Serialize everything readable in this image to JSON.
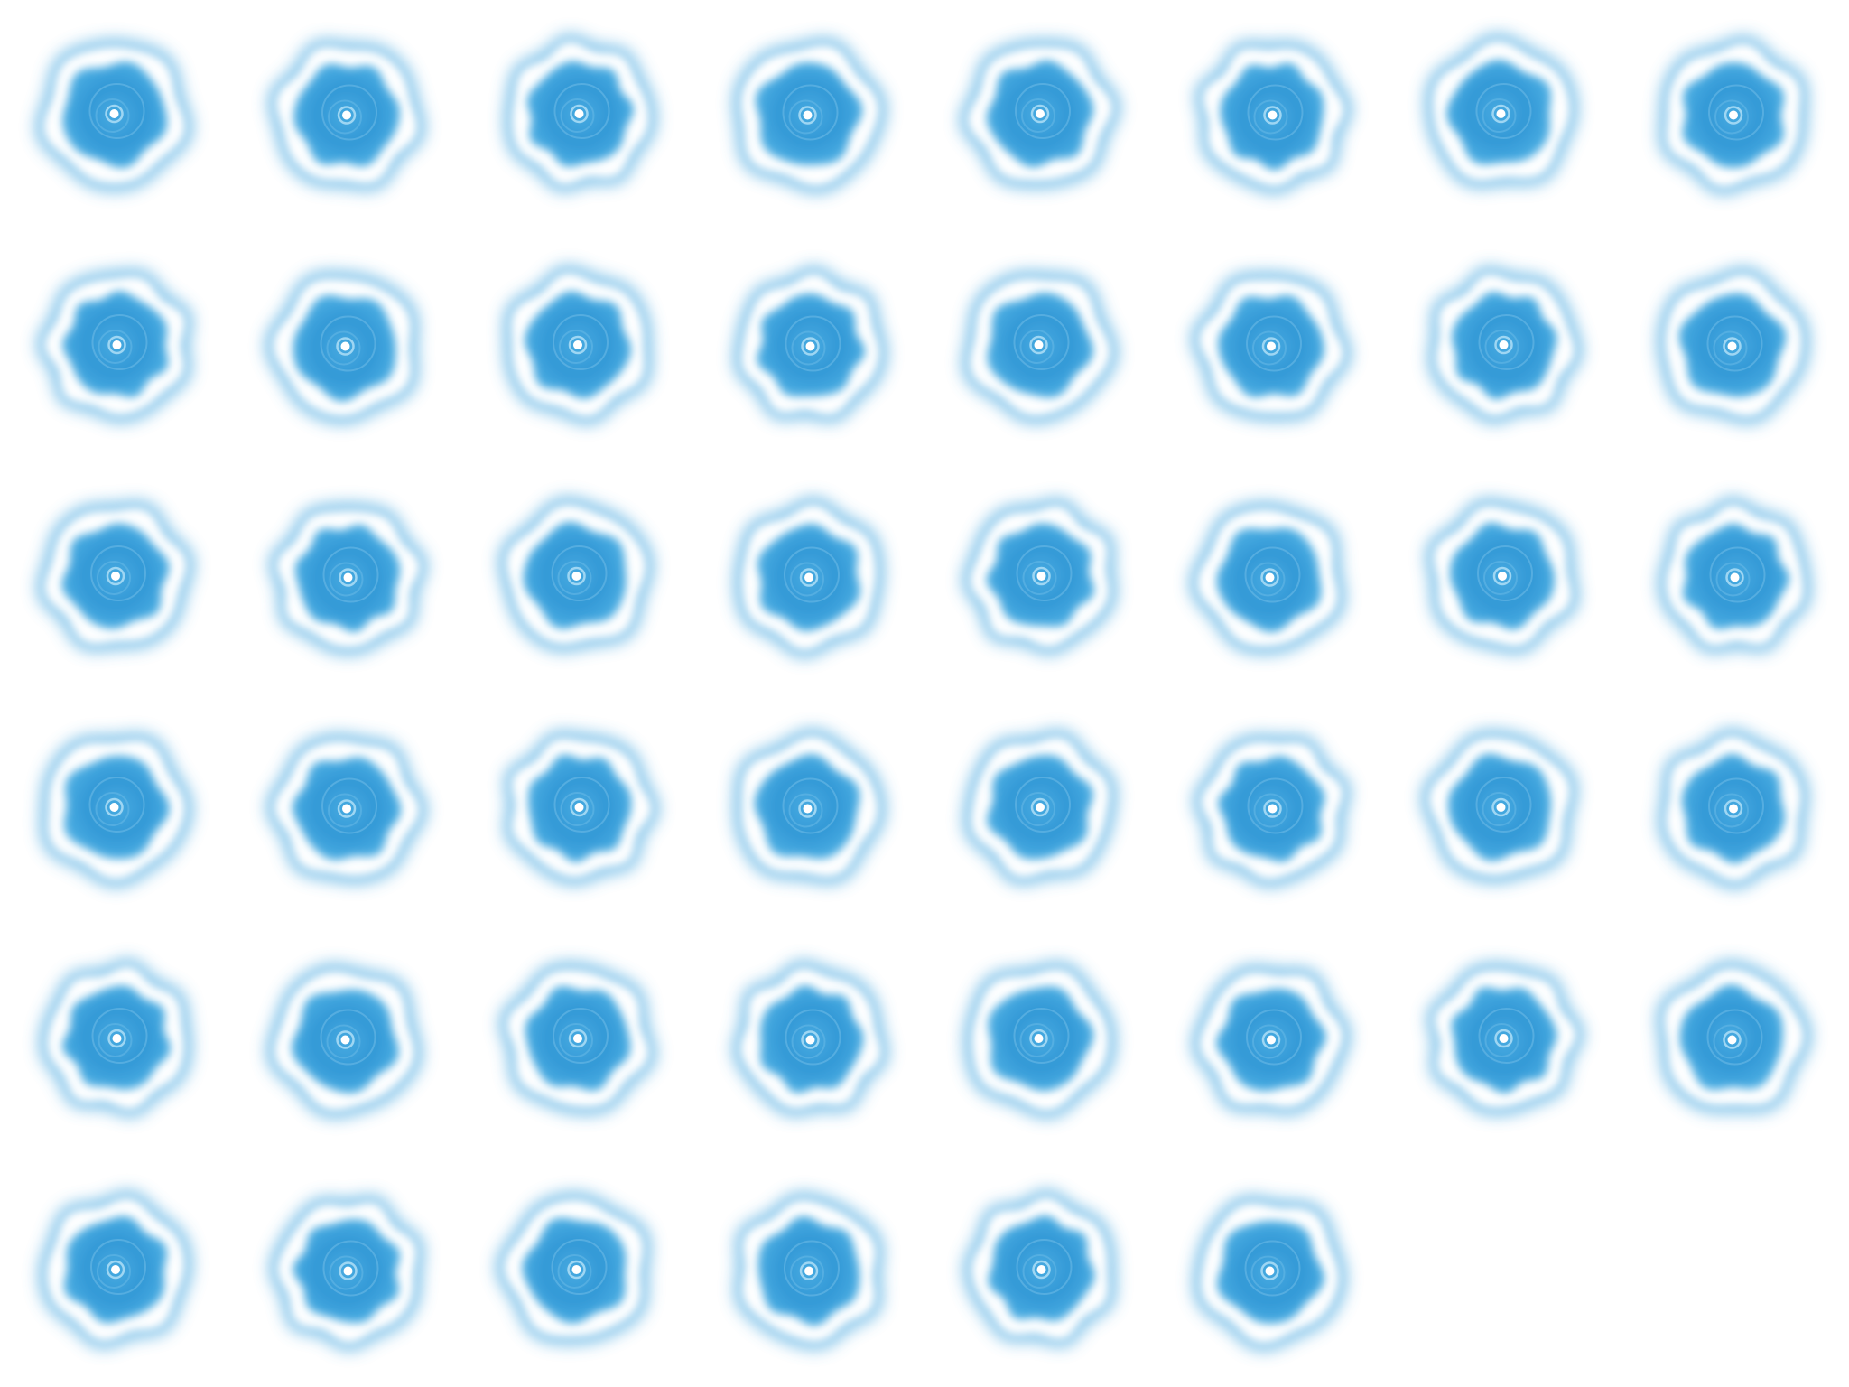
{
  "sprite_sheet": {
    "columns": 8,
    "rows": 6,
    "frame_count": 46,
    "colors": {
      "background": "#ffffff",
      "ring_outer": "#4aa8e0",
      "ring_white": "#ffffff",
      "core_blue": "#49ace2",
      "core_dark": "#3298d6",
      "center_dot": "#ffffff"
    },
    "frame_names": [
      "ripple-frame-01",
      "ripple-frame-02",
      "ripple-frame-03",
      "ripple-frame-04",
      "ripple-frame-05",
      "ripple-frame-06",
      "ripple-frame-07",
      "ripple-frame-08",
      "ripple-frame-09",
      "ripple-frame-10",
      "ripple-frame-11",
      "ripple-frame-12",
      "ripple-frame-13",
      "ripple-frame-14",
      "ripple-frame-15",
      "ripple-frame-16",
      "ripple-frame-17",
      "ripple-frame-18",
      "ripple-frame-19",
      "ripple-frame-20",
      "ripple-frame-21",
      "ripple-frame-22",
      "ripple-frame-23",
      "ripple-frame-24",
      "ripple-frame-25",
      "ripple-frame-26",
      "ripple-frame-27",
      "ripple-frame-28",
      "ripple-frame-29",
      "ripple-frame-30",
      "ripple-frame-31",
      "ripple-frame-32",
      "ripple-frame-33",
      "ripple-frame-34",
      "ripple-frame-35",
      "ripple-frame-36",
      "ripple-frame-37",
      "ripple-frame-38",
      "ripple-frame-39",
      "ripple-frame-40",
      "ripple-frame-41",
      "ripple-frame-42",
      "ripple-frame-43",
      "ripple-frame-44",
      "ripple-frame-45",
      "ripple-frame-46"
    ]
  }
}
